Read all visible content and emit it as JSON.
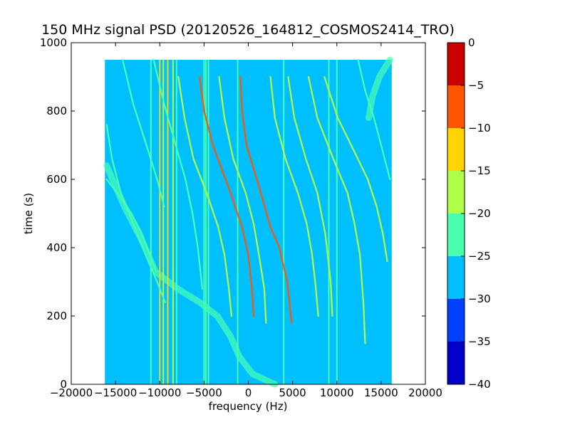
{
  "chart_data": {
    "type": "heatmap",
    "title": "150 MHz signal PSD (20120526_164812_COSMOS2414_TRO)",
    "xlabel": "frequency (Hz)",
    "ylabel": "time (s)",
    "xlim": [
      -20000,
      20000
    ],
    "ylim": [
      0,
      1000
    ],
    "x_ticks": [
      -20000,
      -15000,
      -10000,
      -5000,
      0,
      5000,
      10000,
      15000,
      20000
    ],
    "y_ticks": [
      0,
      200,
      400,
      600,
      800,
      1000
    ],
    "data_extent": {
      "x": [
        -16200,
        16200
      ],
      "y": [
        0,
        950
      ]
    },
    "background_level": -27.5,
    "colorbar": {
      "range": [
        -40,
        0
      ],
      "ticks": [
        0,
        -5,
        -10,
        -15,
        -20,
        -25,
        -30,
        -35,
        -40
      ],
      "levels": [
        {
          "from": -40,
          "to": -35,
          "color": "#0000c8"
        },
        {
          "from": -35,
          "to": -30,
          "color": "#0040ff"
        },
        {
          "from": -30,
          "to": -25,
          "color": "#00bfff"
        },
        {
          "from": -25,
          "to": -20,
          "color": "#48ffb0"
        },
        {
          "from": -20,
          "to": -15,
          "color": "#b0ff48"
        },
        {
          "from": -15,
          "to": -10,
          "color": "#ffd400"
        },
        {
          "from": -10,
          "to": -5,
          "color": "#ff5500"
        },
        {
          "from": -5,
          "to": 0,
          "color": "#c80000"
        }
      ]
    },
    "vertical_lines": [
      {
        "x": -10000,
        "level": -12.5
      },
      {
        "x": -9600,
        "level": -17.5
      },
      {
        "x": -9100,
        "level": -12.5
      },
      {
        "x": -8500,
        "level": -17.5
      },
      {
        "x": -8100,
        "level": -22.5
      },
      {
        "x": -11000,
        "level": -22.5
      },
      {
        "x": -5000,
        "level": -22.5
      },
      {
        "x": -4800,
        "level": -22.5
      },
      {
        "x": -4500,
        "level": -22.5
      },
      {
        "x": -1200,
        "level": -22.5
      },
      {
        "x": 4000,
        "level": -22.5
      },
      {
        "x": 9100,
        "level": -22.5
      },
      {
        "x": 10000,
        "level": -22.5
      }
    ],
    "tracks": [
      {
        "level": -7.5,
        "points": [
          [
            -900,
            900
          ],
          [
            -700,
            800
          ],
          [
            -200,
            700
          ],
          [
            1200,
            580
          ],
          [
            2500,
            460
          ],
          [
            3500,
            400
          ],
          [
            4400,
            300
          ],
          [
            4900,
            180
          ]
        ]
      },
      {
        "level": -7.5,
        "points": [
          [
            -5500,
            900
          ],
          [
            -5000,
            800
          ],
          [
            -4000,
            700
          ],
          [
            -2000,
            560
          ],
          [
            -700,
            460
          ],
          [
            0,
            380
          ],
          [
            400,
            280
          ],
          [
            600,
            200
          ]
        ]
      },
      {
        "level": -17.5,
        "points": [
          [
            2500,
            900
          ],
          [
            3000,
            780
          ],
          [
            4200,
            660
          ],
          [
            5600,
            560
          ],
          [
            6600,
            470
          ],
          [
            7200,
            380
          ],
          [
            7600,
            290
          ],
          [
            7900,
            200
          ]
        ]
      },
      {
        "level": -17.5,
        "points": [
          [
            4500,
            900
          ],
          [
            5200,
            780
          ],
          [
            6500,
            660
          ],
          [
            7800,
            560
          ],
          [
            8700,
            440
          ],
          [
            9300,
            300
          ],
          [
            9500,
            200
          ]
        ]
      },
      {
        "level": -17.5,
        "points": [
          [
            -3300,
            900
          ],
          [
            -2700,
            780
          ],
          [
            -1700,
            660
          ],
          [
            -300,
            560
          ],
          [
            600,
            470
          ],
          [
            1200,
            380
          ],
          [
            1800,
            280
          ],
          [
            2000,
            180
          ]
        ]
      },
      {
        "level": -17.5,
        "points": [
          [
            -7900,
            900
          ],
          [
            -7200,
            780
          ],
          [
            -6200,
            660
          ],
          [
            -4700,
            560
          ],
          [
            -3400,
            460
          ],
          [
            -2700,
            380
          ],
          [
            -2200,
            280
          ],
          [
            -1900,
            200
          ]
        ]
      },
      {
        "level": -17.5,
        "points": [
          [
            6800,
            900
          ],
          [
            7800,
            780
          ],
          [
            9600,
            660
          ],
          [
            11200,
            560
          ],
          [
            12000,
            470
          ],
          [
            12600,
            380
          ],
          [
            13000,
            240
          ],
          [
            13200,
            120
          ]
        ]
      },
      {
        "level": -17.5,
        "points": [
          [
            8600,
            900
          ],
          [
            10100,
            780
          ],
          [
            12000,
            680
          ],
          [
            13500,
            600
          ],
          [
            14500,
            520
          ],
          [
            15200,
            440
          ],
          [
            15700,
            360
          ]
        ]
      },
      {
        "level": -22.5,
        "points": [
          [
            -14200,
            950
          ],
          [
            -13000,
            820
          ],
          [
            -11500,
            700
          ],
          [
            -10300,
            600
          ],
          [
            -9500,
            520
          ]
        ]
      },
      {
        "level": -22.5,
        "points": [
          [
            -10700,
            950
          ],
          [
            -9500,
            820
          ],
          [
            -8200,
            700
          ],
          [
            -7100,
            600
          ],
          [
            -6300,
            500
          ],
          [
            -5700,
            400
          ],
          [
            -5200,
            280
          ]
        ]
      },
      {
        "level": -22.5,
        "points": [
          [
            -16000,
            760
          ],
          [
            -15400,
            660
          ],
          [
            -14400,
            560
          ],
          [
            -13000,
            470
          ],
          [
            -11600,
            380
          ],
          [
            -10300,
            300
          ],
          [
            -9400,
            240
          ]
        ]
      },
      {
        "level": -22.5,
        "points": [
          [
            -16000,
            600
          ],
          [
            -14800,
            560
          ],
          [
            -13200,
            500
          ],
          [
            -12000,
            440
          ],
          [
            -11000,
            370
          ],
          [
            -10400,
            330
          ]
        ]
      },
      {
        "level": -22.5,
        "points": [
          [
            12400,
            950
          ],
          [
            13200,
            860
          ],
          [
            14200,
            780
          ],
          [
            15200,
            680
          ],
          [
            16000,
            600
          ]
        ]
      }
    ],
    "diffuse_bands": [
      {
        "level": -22.5,
        "points": [
          [
            -16000,
            640
          ],
          [
            -14000,
            520
          ],
          [
            -12000,
            420
          ],
          [
            -10500,
            330
          ],
          [
            -8000,
            280
          ],
          [
            -5500,
            240
          ],
          [
            -3500,
            200
          ],
          [
            -2000,
            140
          ],
          [
            -1000,
            80
          ],
          [
            500,
            30
          ],
          [
            3000,
            0
          ]
        ]
      },
      {
        "level": -22.5,
        "points": [
          [
            16000,
            950
          ],
          [
            14800,
            900
          ],
          [
            14000,
            840
          ],
          [
            13600,
            780
          ]
        ]
      }
    ]
  }
}
